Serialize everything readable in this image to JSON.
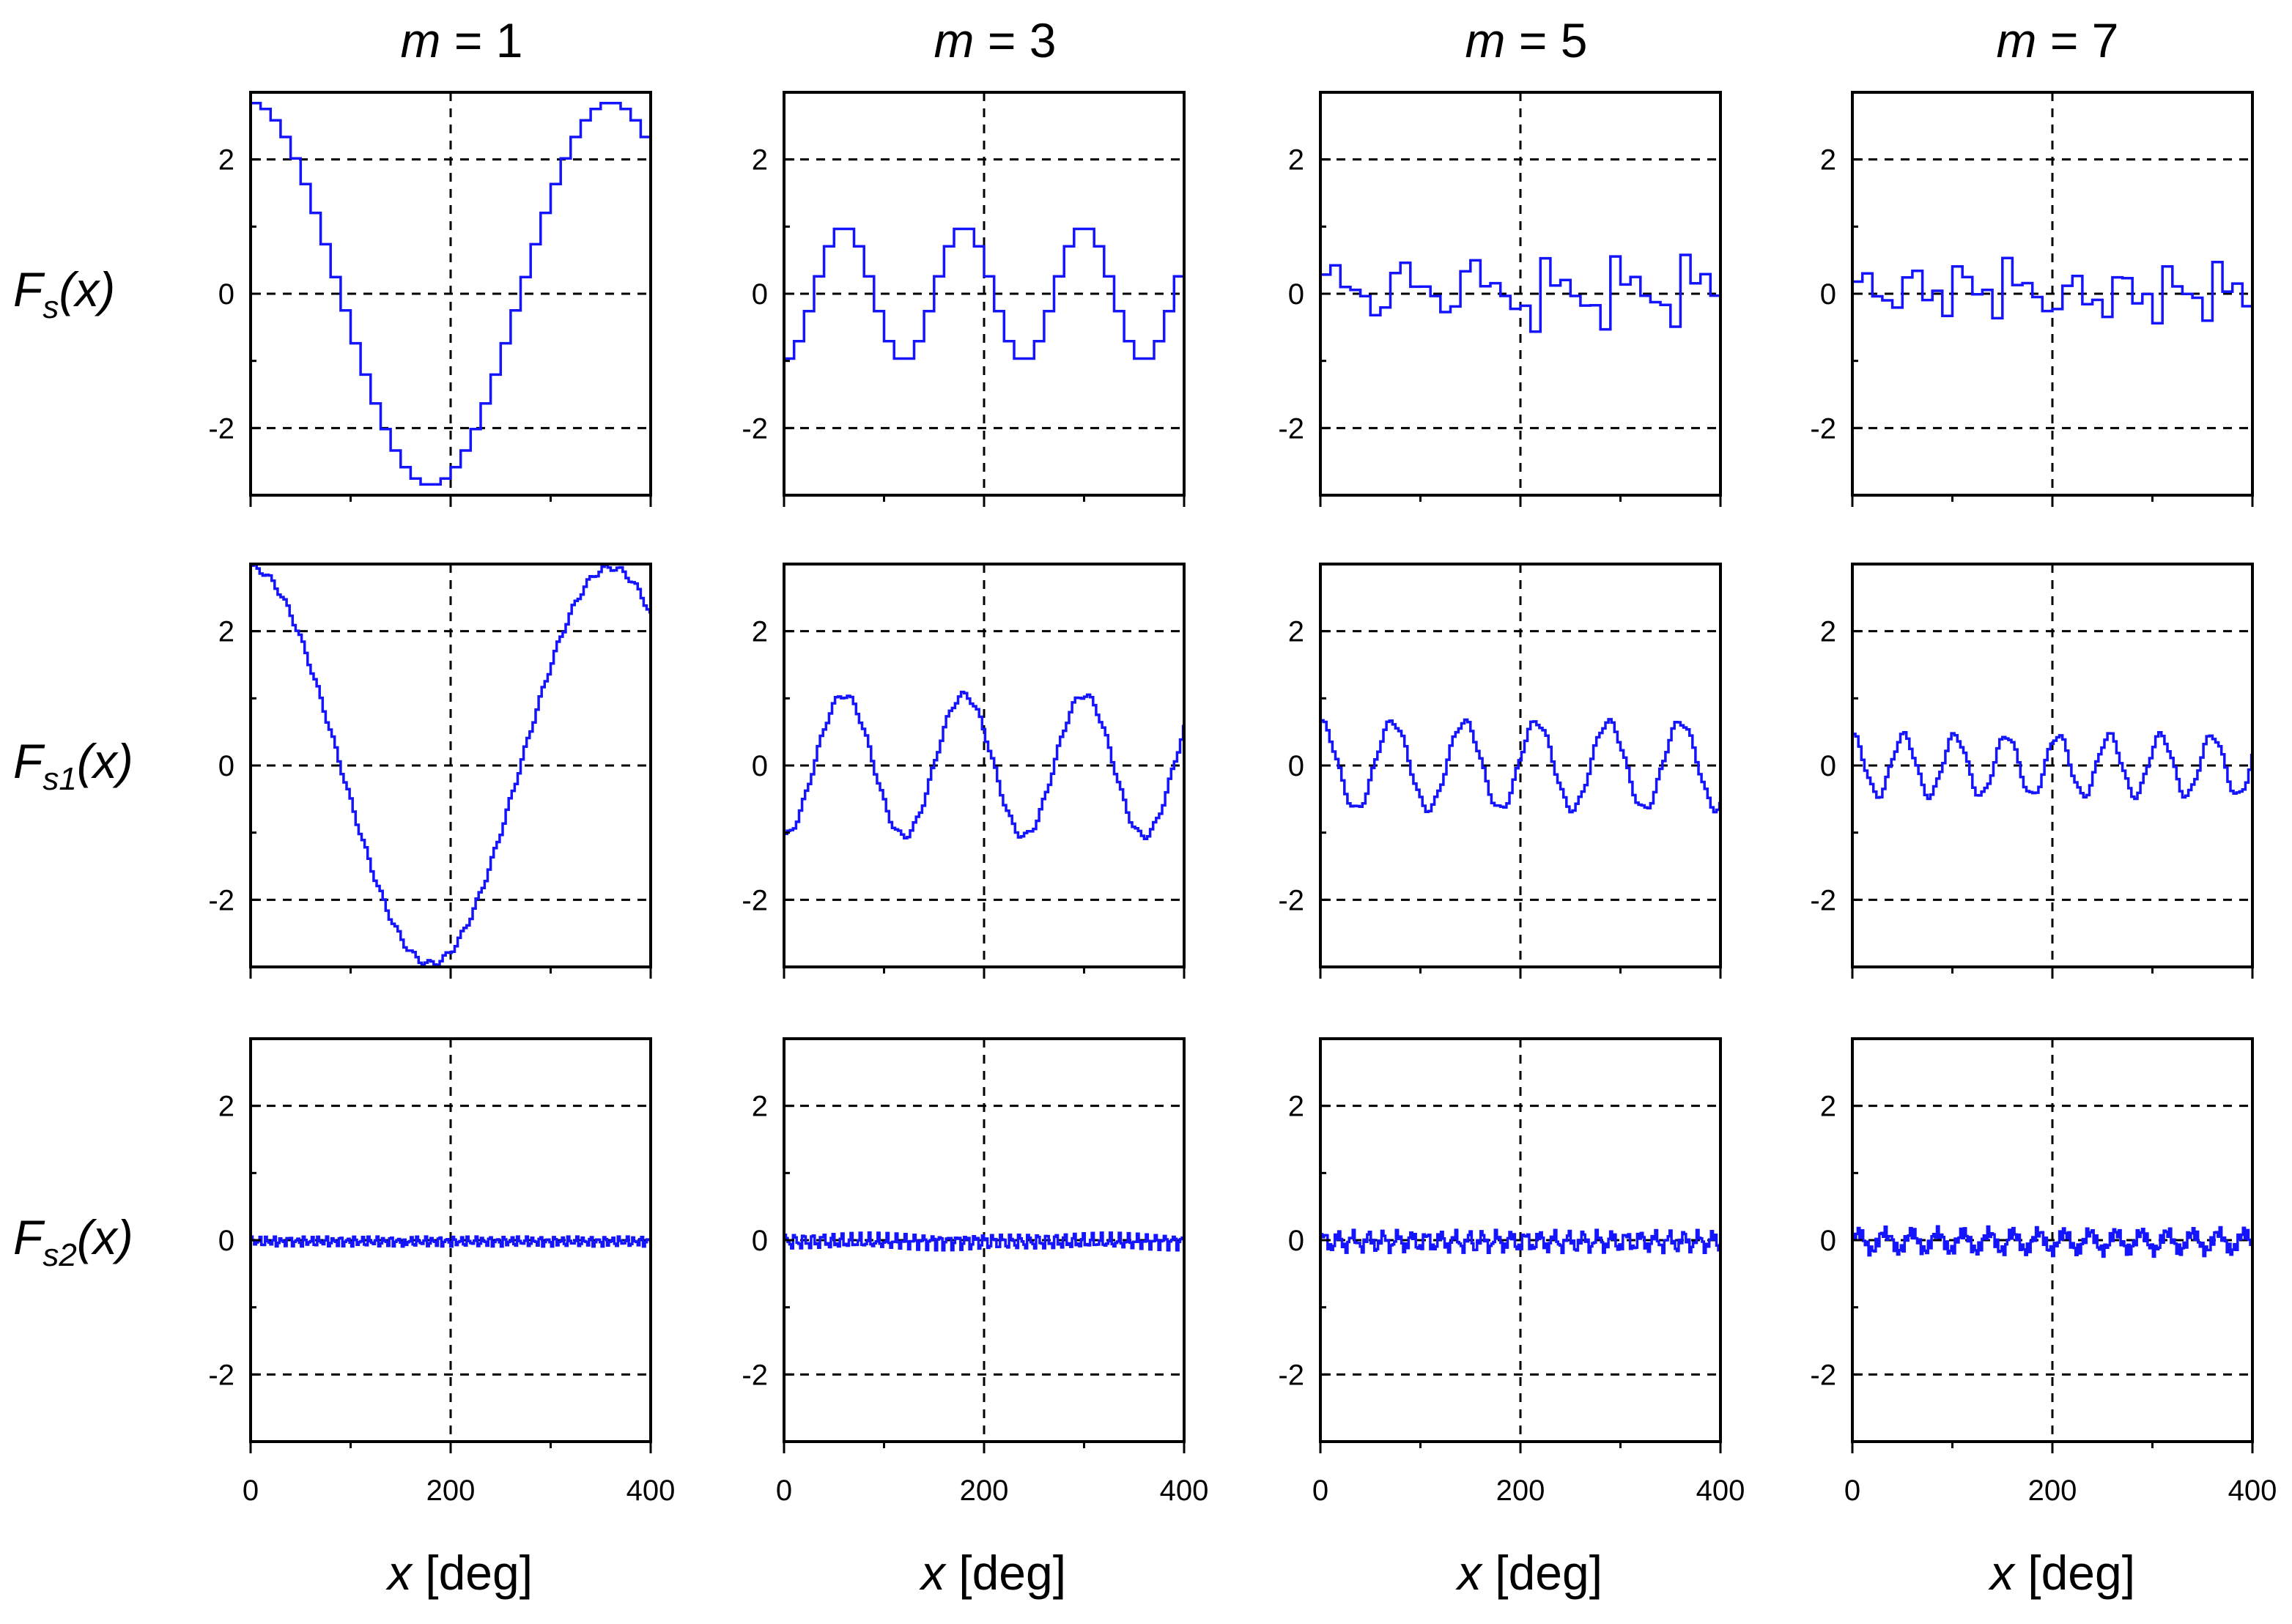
{
  "figure": {
    "columns": [
      {
        "m_symbol": "m",
        "eq": " = ",
        "m_value": "1"
      },
      {
        "m_symbol": "m",
        "eq": " = ",
        "m_value": "3"
      },
      {
        "m_symbol": "m",
        "eq": " = ",
        "m_value": "5"
      },
      {
        "m_symbol": "m",
        "eq": " = ",
        "m_value": "7"
      }
    ],
    "rows": [
      {
        "base": "F",
        "sub": "s",
        "arg": "(x)"
      },
      {
        "base": "F",
        "sub": "s1",
        "arg": "(x)"
      },
      {
        "base": "F",
        "sub": "s2",
        "arg": "(x)"
      }
    ],
    "x_label": {
      "var": "x",
      "unit": " [deg]"
    }
  },
  "colors": {
    "line": "#1414ff",
    "axis": "#000000",
    "grid": "#000000"
  },
  "chart_data": {
    "type": "line",
    "grid": true,
    "grid_style": "dashed",
    "xlim": [
      0,
      400
    ],
    "ylim": [
      -3,
      3
    ],
    "x_ticks": [
      0,
      200,
      400
    ],
    "y_ticks": [
      -2,
      0,
      2
    ],
    "x_tick_labels": [
      "0",
      "200",
      "400"
    ],
    "y_tick_labels": [
      "-2",
      "0",
      "2"
    ],
    "x_range": [
      0,
      400
    ],
    "panels": [
      {
        "row": 0,
        "col": 0,
        "m": 1,
        "ylabel": "Fs(x)",
        "xlabel": "x [deg]",
        "shape": "staircase-cosine",
        "amplitude": 2.85,
        "period_deg": 360,
        "phase_deg": 0,
        "step_deg": 10
      },
      {
        "row": 0,
        "col": 1,
        "m": 3,
        "ylabel": "Fs(x)",
        "xlabel": "x [deg]",
        "shape": "staircase-cosine",
        "amplitude": 1.0,
        "period_deg": 120,
        "phase_deg": 60,
        "step_deg": 10
      },
      {
        "row": 0,
        "col": 2,
        "m": 5,
        "ylabel": "Fs(x)",
        "xlabel": "x [deg]",
        "shape": "staircase-sawtooth",
        "amplitude": 0.62,
        "period_deg": 72,
        "phase_deg": 0,
        "step_deg": 10
      },
      {
        "row": 0,
        "col": 3,
        "m": 7,
        "ylabel": "Fs(x)",
        "xlabel": "x [deg]",
        "shape": "staircase-sawtooth",
        "amplitude": 0.5,
        "period_deg": 51.4,
        "phase_deg": 0,
        "step_deg": 10
      },
      {
        "row": 1,
        "col": 0,
        "m": 1,
        "ylabel": "Fs1(x)",
        "xlabel": "x [deg]",
        "shape": "fine-staircase-cosine",
        "amplitude": 2.95,
        "period_deg": 360,
        "phase_deg": 0,
        "step_deg": 3
      },
      {
        "row": 1,
        "col": 1,
        "m": 3,
        "ylabel": "Fs1(x)",
        "xlabel": "x [deg]",
        "shape": "fine-staircase-cosine",
        "amplitude": 1.05,
        "period_deg": 120,
        "phase_deg": 60,
        "step_deg": 3
      },
      {
        "row": 1,
        "col": 2,
        "m": 5,
        "ylabel": "Fs1(x)",
        "xlabel": "x [deg]",
        "shape": "fine-staircase-cosine",
        "amplitude": 0.65,
        "period_deg": 72,
        "phase_deg": 0,
        "step_deg": 3
      },
      {
        "row": 1,
        "col": 3,
        "m": 7,
        "ylabel": "Fs1(x)",
        "xlabel": "x [deg]",
        "shape": "fine-staircase-cosine",
        "amplitude": 0.45,
        "period_deg": 51.4,
        "phase_deg": 0,
        "step_deg": 3
      },
      {
        "row": 2,
        "col": 0,
        "m": 1,
        "ylabel": "Fs2(x)",
        "xlabel": "x [deg]",
        "shape": "ripple",
        "amplitude": 0.1,
        "period_deg": 7.2,
        "phase_deg": 0,
        "step_deg": 1.8
      },
      {
        "row": 2,
        "col": 1,
        "m": 3,
        "ylabel": "Fs2(x)",
        "xlabel": "x [deg]",
        "shape": "ripple",
        "amplitude": 0.15,
        "period_deg": 9,
        "phase_deg": 0,
        "step_deg": 1.8
      },
      {
        "row": 2,
        "col": 2,
        "m": 5,
        "ylabel": "Fs2(x)",
        "xlabel": "x [deg]",
        "shape": "ripple",
        "amplitude": 0.2,
        "period_deg": 14.4,
        "phase_deg": 0,
        "step_deg": 1.8
      },
      {
        "row": 2,
        "col": 3,
        "m": 7,
        "ylabel": "Fs2(x)",
        "xlabel": "x [deg]",
        "shape": "ripple",
        "amplitude": 0.25,
        "period_deg": 25.7,
        "phase_deg": 0,
        "step_deg": 1.8
      }
    ]
  }
}
